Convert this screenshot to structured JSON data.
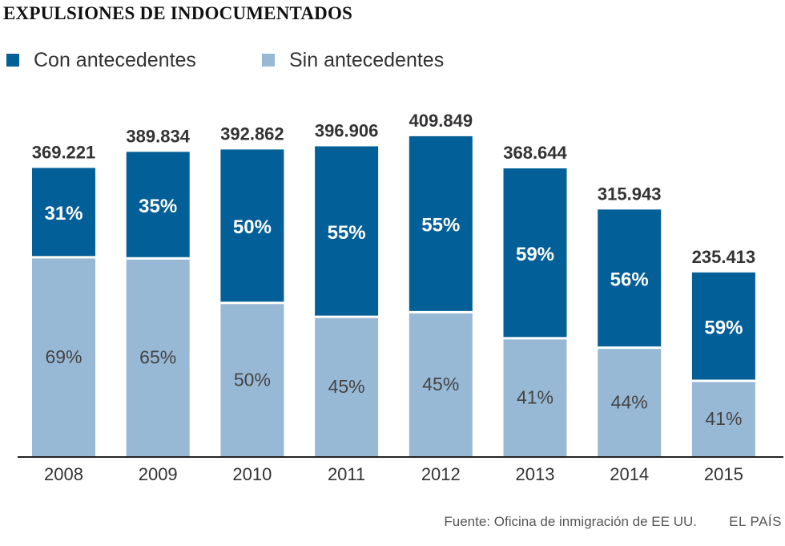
{
  "colors": {
    "con": "#035f97",
    "sin": "#97b9d5",
    "axis": "#222222",
    "total": "#333333",
    "pct_con": "#ffffff",
    "pct_sin": "#444444"
  },
  "chart_data": {
    "type": "bar",
    "stacked": true,
    "title": "EXPULSIONES DE INDOCUMENTADOS",
    "categories": [
      "2008",
      "2009",
      "2010",
      "2011",
      "2012",
      "2013",
      "2014",
      "2015"
    ],
    "totals": [
      369221,
      389834,
      392862,
      396906,
      409849,
      368644,
      315943,
      235413
    ],
    "total_labels": [
      "369.221",
      "389.834",
      "392.862",
      "396.906",
      "409.849",
      "368.644",
      "315.943",
      "235.413"
    ],
    "series": [
      {
        "name": "Sin antecedentes",
        "key": "sin",
        "percent": [
          69,
          65,
          50,
          45,
          45,
          41,
          44,
          41
        ],
        "labels": [
          "69%",
          "65%",
          "50%",
          "45%",
          "45%",
          "41%",
          "44%",
          "41%"
        ]
      },
      {
        "name": "Con antecedentes",
        "key": "con",
        "percent": [
          31,
          35,
          50,
          55,
          55,
          59,
          56,
          59
        ],
        "labels": [
          "31%",
          "35%",
          "50%",
          "55%",
          "55%",
          "59%",
          "56%",
          "59%"
        ]
      }
    ],
    "ylim": [
      0,
      420000
    ],
    "xlabel": "",
    "ylabel": "",
    "legend_position": "top-left"
  },
  "legend": {
    "con": "Con antecedentes",
    "sin": "Sin antecedentes"
  },
  "footer": {
    "source": "Fuente: Oficina de inmigración de EE UU.",
    "brand": "EL PAÍS"
  }
}
